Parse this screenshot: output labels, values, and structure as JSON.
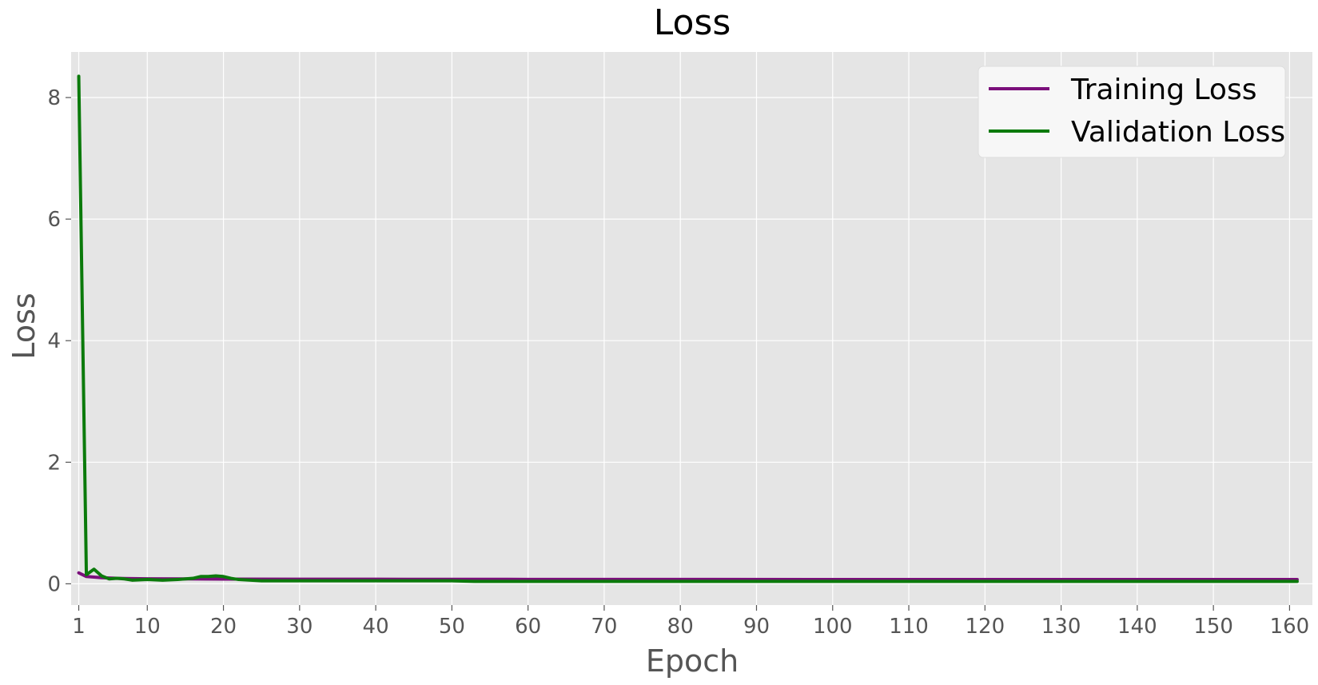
{
  "chart_data": {
    "type": "line",
    "title": "Loss",
    "xlabel": "Epoch",
    "ylabel": "Loss",
    "xlim": [
      0,
      163
    ],
    "ylim": [
      -0.35,
      8.75
    ],
    "x_ticks": [
      1,
      10,
      20,
      30,
      40,
      50,
      60,
      70,
      80,
      90,
      100,
      110,
      120,
      130,
      140,
      150,
      160
    ],
    "y_ticks": [
      0,
      2,
      4,
      6,
      8
    ],
    "grid": true,
    "legend_position": "top-right",
    "series": [
      {
        "name": "Training Loss",
        "color": "#7b0f7b",
        "points": [
          [
            1,
            0.18
          ],
          [
            2,
            0.12
          ],
          [
            3,
            0.11
          ],
          [
            4,
            0.1
          ],
          [
            5,
            0.095
          ],
          [
            6,
            0.09
          ],
          [
            7,
            0.088
          ],
          [
            8,
            0.085
          ],
          [
            10,
            0.082
          ],
          [
            15,
            0.08
          ],
          [
            20,
            0.078
          ],
          [
            30,
            0.076
          ],
          [
            40,
            0.075
          ],
          [
            50,
            0.074
          ],
          [
            60,
            0.073
          ],
          [
            80,
            0.072
          ],
          [
            100,
            0.071
          ],
          [
            120,
            0.071
          ],
          [
            140,
            0.07
          ],
          [
            161,
            0.07
          ]
        ]
      },
      {
        "name": "Validation Loss",
        "color": "#0b7a0b",
        "points": [
          [
            1,
            8.35
          ],
          [
            2,
            0.15
          ],
          [
            3,
            0.24
          ],
          [
            4,
            0.13
          ],
          [
            5,
            0.08
          ],
          [
            6,
            0.09
          ],
          [
            7,
            0.08
          ],
          [
            8,
            0.06
          ],
          [
            10,
            0.07
          ],
          [
            12,
            0.06
          ],
          [
            14,
            0.07
          ],
          [
            15,
            0.08
          ],
          [
            16,
            0.09
          ],
          [
            17,
            0.12
          ],
          [
            18,
            0.12
          ],
          [
            19,
            0.13
          ],
          [
            20,
            0.12
          ],
          [
            21,
            0.09
          ],
          [
            22,
            0.07
          ],
          [
            25,
            0.05
          ],
          [
            30,
            0.05
          ],
          [
            35,
            0.05
          ],
          [
            40,
            0.05
          ],
          [
            45,
            0.05
          ],
          [
            50,
            0.05
          ],
          [
            53,
            0.04
          ],
          [
            60,
            0.04
          ],
          [
            80,
            0.04
          ],
          [
            100,
            0.04
          ],
          [
            120,
            0.04
          ],
          [
            140,
            0.04
          ],
          [
            161,
            0.04
          ]
        ]
      }
    ]
  },
  "colors": {
    "plot_background": "#e5e5e5",
    "grid": "#ffffff",
    "legend_background": "#f7f7f7"
  }
}
